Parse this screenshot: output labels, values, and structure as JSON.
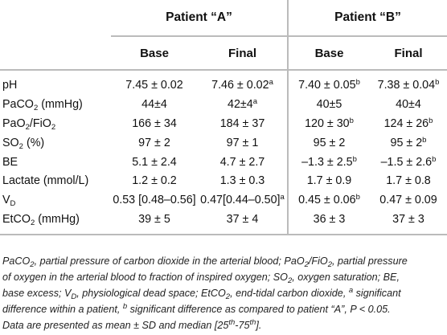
{
  "header": {
    "group_a": "Patient “A”",
    "group_b": "Patient “B”",
    "col_base_a": "Base",
    "col_final_a": "Final",
    "col_base_b": "Base",
    "col_final_b": "Final"
  },
  "rows": [
    {
      "label": "pH",
      "a_base": "7.45 ± 0.02",
      "a_final": "7.46 ± 0.02",
      "a_final_sup": "a",
      "b_base": "7.40 ± 0.05",
      "b_base_sup": "b",
      "b_final": "7.38 ± 0.04",
      "b_final_sup": "b"
    },
    {
      "label_main": "PaCO",
      "label_sub": "2",
      "label_rest": " (mmHg)",
      "a_base": "44±4",
      "a_final": "42±4",
      "a_final_sup": "a",
      "b_base": "40±5",
      "b_final": "40±4"
    },
    {
      "label_main": "PaO",
      "label_sub": "2",
      "label_mid": "/FiO",
      "label_sub2": "2",
      "a_base": "166 ± 34",
      "a_final": "184 ± 37",
      "b_base": "120 ± 30",
      "b_base_sup": "b",
      "b_final": "124 ± 26",
      "b_final_sup": "b"
    },
    {
      "label_main": "SO",
      "label_sub": "2",
      "label_rest": " (%)",
      "a_base": "97 ± 2",
      "a_final": "97 ± 1",
      "b_base": "95 ± 2",
      "b_final": "95 ± 2",
      "b_final_sup": "b"
    },
    {
      "label": "BE",
      "a_base": "5.1 ± 2.4",
      "a_final": "4.7 ± 2.7",
      "b_base": "–1.3 ± 2.5",
      "b_base_sup": "b",
      "b_final": "–1.5 ± 2.6",
      "b_final_sup": "b"
    },
    {
      "label": "Lactate (mmol/L)",
      "a_base": "1.2 ± 0.2",
      "a_final": "1.3 ± 0.3",
      "b_base": "1.7 ± 0.9",
      "b_final": "1.7 ± 0.8"
    },
    {
      "label_main": "V",
      "label_sub": "D",
      "a_base": "0.53 [0.48–0.56]",
      "a_final": "0.47[0.44–0.50]",
      "a_final_sup": "a",
      "b_base": "0.45 ± 0.06",
      "b_base_sup": "b",
      "b_final": "0.47 ± 0.09"
    },
    {
      "label_main": "EtCO",
      "label_sub": "2",
      "label_rest": " (mmHg)",
      "a_base": "39 ± 5",
      "a_final": "37 ± 4",
      "b_base": "36 ± 3",
      "b_final": "37 ± 3"
    }
  ],
  "footnote": {
    "l1_a": "PaCO",
    "l1_a_sub": "2",
    "l1_b": ", partial pressure of carbon dioxide in the arterial blood; PaO",
    "l1_b_sub": "2",
    "l1_c": "/FiO",
    "l1_c_sub": "2",
    "l1_d": ", partial pressure",
    "l2_a": "of oxygen in the arterial blood to fraction of inspired oxygen; SO",
    "l2_a_sub": "2",
    "l2_b": ", oxygen saturation; BE,",
    "l3_a": "base excess; V",
    "l3_a_sub": "D",
    "l3_b": ", physiological dead space; EtCO",
    "l3_b_sub": "2",
    "l3_c": ", end-tidal carbon dioxide, ",
    "l3_c_sup": "a",
    "l3_d": " significant",
    "l4_a": "difference within a patient, ",
    "l4_a_sup": "b",
    "l4_b": " significant difference as compared to patient “A”, P < 0.05.",
    "l5_a": "Data are presented as mean ± SD and median [25",
    "l5_a_sup": "th",
    "l5_b": "-75",
    "l5_b_sup": "th",
    "l5_c": "]."
  }
}
